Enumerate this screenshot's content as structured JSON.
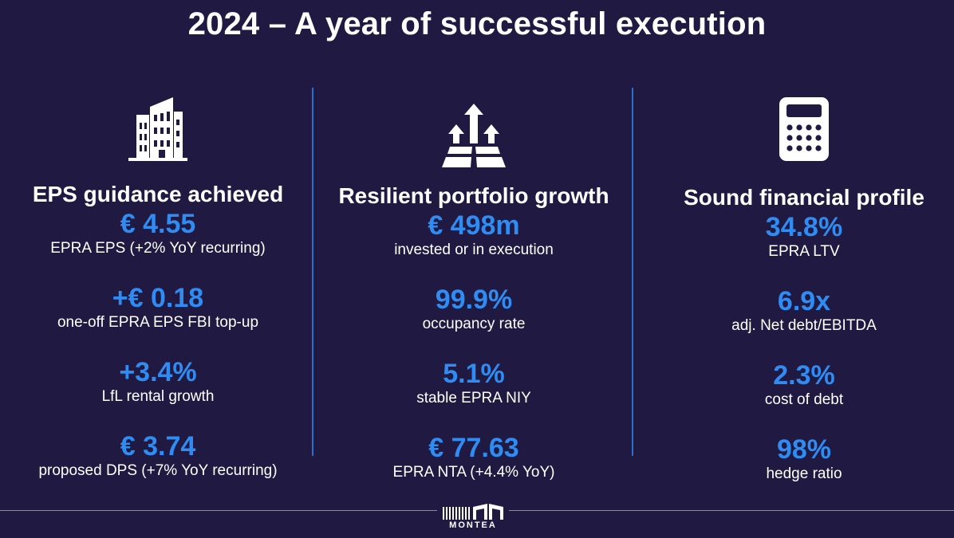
{
  "slide": {
    "title": "2024 – A year of successful execution"
  },
  "columns": [
    {
      "icon": "building-icon",
      "heading": "EPS guidance achieved",
      "metrics": [
        {
          "value": "€ 4.55",
          "label": "EPRA EPS (+2% YoY recurring)"
        },
        {
          "value": "+€ 0.18",
          "label": "one-off EPRA EPS FBI top-up"
        },
        {
          "value": "+3.4%",
          "label": "LfL rental growth"
        },
        {
          "value": "€ 3.74",
          "label": "proposed DPS (+7% YoY recurring)"
        }
      ]
    },
    {
      "icon": "growth-arrows-icon",
      "heading": "Resilient portfolio growth",
      "metrics": [
        {
          "value": "€ 498m",
          "label": "invested or in execution"
        },
        {
          "value": "99.9%",
          "label": "occupancy rate"
        },
        {
          "value": "5.1%",
          "label": "stable EPRA NIY"
        },
        {
          "value": "€ 77.63",
          "label": "EPRA NTA (+4.4% YoY)"
        }
      ]
    },
    {
      "icon": "calculator-icon",
      "heading": "Sound financial profile",
      "metrics": [
        {
          "value": "34.8%",
          "label": "EPRA LTV"
        },
        {
          "value": "6.9x",
          "label": "adj. Net debt/EBITDA"
        },
        {
          "value": "2.3%",
          "label": "cost of debt"
        },
        {
          "value": "98%",
          "label": "hedge ratio"
        }
      ]
    }
  ],
  "footer": {
    "logo_text": "MONTEA"
  },
  "colors": {
    "background": "#201a42",
    "accent": "#2f8cf2",
    "divider": "#2c6fc6",
    "text": "#ffffff"
  }
}
